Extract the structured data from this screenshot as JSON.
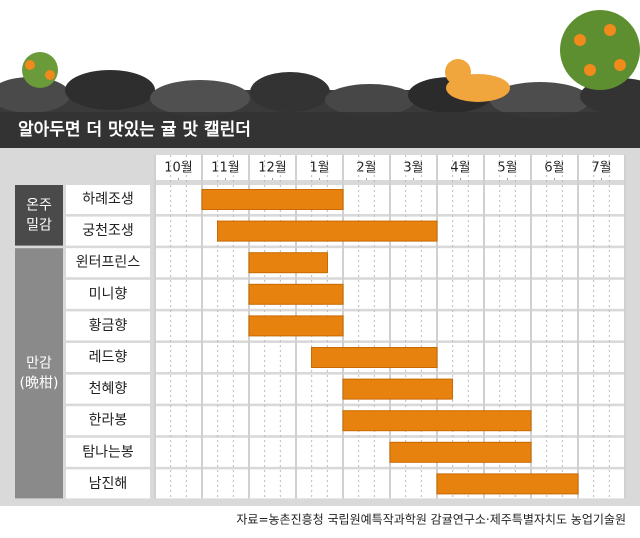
{
  "chart_data": {
    "type": "gantt",
    "title": "알아두면 더 맛있는 귤 맛 캘린더",
    "groups": [
      {
        "lines": [
          "온주",
          "밀감"
        ],
        "rows": [
          0,
          1
        ]
      },
      {
        "lines": [
          "만감",
          "(晩柑)"
        ],
        "rows": [
          2,
          9
        ]
      }
    ],
    "categories": [
      "하례조생",
      "궁천조생",
      "윈터프린스",
      "미니향",
      "황금향",
      "레드향",
      "천혜향",
      "한라봉",
      "탐나는봉",
      "남진해"
    ],
    "start": [
      1,
      1.33,
      2,
      2,
      2,
      3.33,
      4,
      4,
      5,
      6
    ],
    "end": [
      4,
      6,
      3.67,
      4,
      4,
      6,
      6.33,
      8,
      8,
      9
    ],
    "color": "#e8820f",
    "xlim": [
      0,
      10
    ],
    "xticks": [
      {
        "value": 0.5,
        "label": "10월"
      },
      {
        "value": 1.5,
        "label": "11월"
      },
      {
        "value": 2.5,
        "label": "12월"
      },
      {
        "value": 3.5,
        "label": "1월"
      },
      {
        "value": 4.5,
        "label": "2월"
      },
      {
        "value": 5.5,
        "label": "3월"
      },
      {
        "value": 6.5,
        "label": "4월"
      },
      {
        "value": 7.5,
        "label": "5월"
      },
      {
        "value": 8.5,
        "label": "6월"
      },
      {
        "value": 9.5,
        "label": "7월"
      }
    ],
    "source": "자료=농촌진흥청 국립원예특작과학원 감귤연구소·제주특별자치도 농업기술원"
  }
}
